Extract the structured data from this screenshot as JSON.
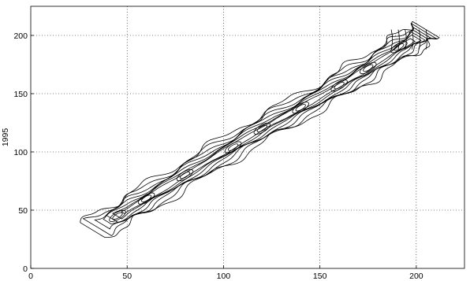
{
  "chart_data": {
    "type": "contour",
    "title": "",
    "xlabel": "",
    "ylabel": "1995",
    "xlim": [
      0,
      225
    ],
    "ylim": [
      0,
      225
    ],
    "x_ticks": [
      0,
      50,
      100,
      150,
      200
    ],
    "y_ticks": [
      0,
      50,
      100,
      150,
      200
    ],
    "grid": true,
    "ridge": {
      "description_units": "data",
      "centerline": [
        [
          32,
          33
        ],
        [
          45,
          45
        ],
        [
          60,
          60
        ],
        [
          80,
          80
        ],
        [
          100,
          100
        ],
        [
          120,
          120
        ],
        [
          140,
          138
        ],
        [
          160,
          157
        ],
        [
          175,
          172
        ],
        [
          190,
          188
        ],
        [
          200,
          198
        ],
        [
          205,
          205
        ]
      ],
      "contour_half_widths": [
        9.0,
        7.5,
        6.0,
        4.8,
        3.6,
        2.5,
        1.5
      ]
    },
    "top_right_blob": {
      "x": [
        187,
        205
      ],
      "y": [
        188,
        205
      ]
    }
  }
}
